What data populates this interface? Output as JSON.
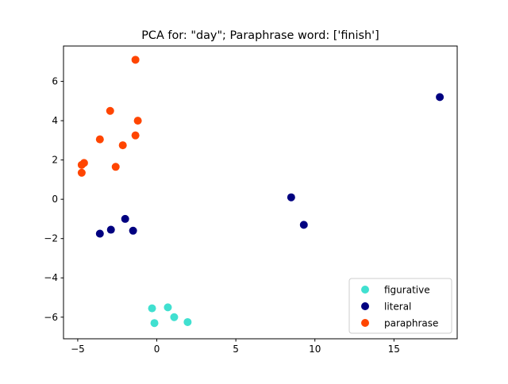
{
  "chart_data": {
    "type": "scatter",
    "title": "PCA for: \"day\"; Paraphrase word: ['finish']",
    "xlabel": "",
    "ylabel": "",
    "xlim": [
      -5.9,
      19.0
    ],
    "ylim": [
      -7.1,
      7.8
    ],
    "xticks": [
      -5,
      0,
      5,
      10,
      15
    ],
    "yticks": [
      -6,
      -4,
      -2,
      0,
      2,
      4,
      6
    ],
    "grid": false,
    "legend_position": "lower-right",
    "series": [
      {
        "name": "figurative",
        "color": "#40e0d0",
        "points": [
          [
            -0.3,
            -5.55
          ],
          [
            0.7,
            -5.5
          ],
          [
            -0.15,
            -6.3
          ],
          [
            1.1,
            -6.0
          ],
          [
            1.95,
            -6.25
          ]
        ]
      },
      {
        "name": "literal",
        "color": "#000080",
        "points": [
          [
            17.9,
            5.2
          ],
          [
            8.5,
            0.1
          ],
          [
            9.3,
            -1.3
          ],
          [
            -2.0,
            -1.0
          ],
          [
            -2.9,
            -1.55
          ],
          [
            -3.6,
            -1.75
          ],
          [
            -1.5,
            -1.6
          ]
        ]
      },
      {
        "name": "paraphrase",
        "color": "#ff4500",
        "points": [
          [
            -1.35,
            7.1
          ],
          [
            -2.95,
            4.5
          ],
          [
            -1.2,
            4.0
          ],
          [
            -3.6,
            3.05
          ],
          [
            -1.35,
            3.25
          ],
          [
            -2.15,
            2.75
          ],
          [
            -4.6,
            1.85
          ],
          [
            -4.75,
            1.75
          ],
          [
            -2.6,
            1.65
          ],
          [
            -4.75,
            1.35
          ]
        ]
      }
    ]
  }
}
